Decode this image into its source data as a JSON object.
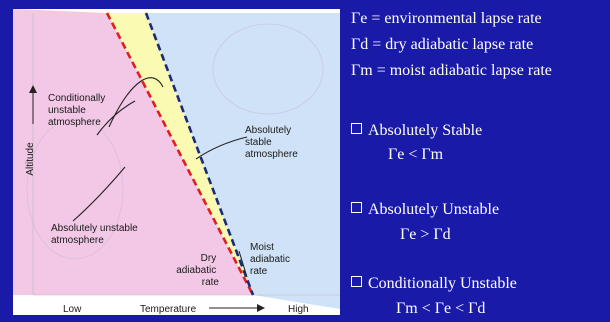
{
  "diagram": {
    "axis": {
      "y_label": "Altitude",
      "x_label": "Temperature",
      "x_low": "Low",
      "x_high": "High"
    },
    "regions": {
      "conditionally_unstable": [
        "Conditionally",
        "unstable",
        "atmosphere"
      ],
      "absolutely_stable": [
        "Absolutely",
        "stable",
        "atmosphere"
      ],
      "absolutely_unstable": [
        "Absolutely unstable",
        "atmosphere"
      ]
    },
    "rates": {
      "dry": [
        "Dry",
        "adiabatic",
        "rate"
      ],
      "moist": [
        "Moist",
        "adiabatic",
        "rate"
      ]
    },
    "colors": {
      "dry_line": "#e11d1d",
      "moist_line": "#1b2b7a",
      "stable_fill": "#cfe2f7",
      "conditional_fill": "#fafab2",
      "unstable_fill": "#f2c8e6"
    }
  },
  "definitions": [
    "Γe = environmental lapse rate",
    "Γd = dry adiabatic lapse rate",
    "Γm = moist adiabatic lapse rate"
  ],
  "stability": [
    {
      "label": "Absolutely Stable",
      "condition": "Γe < Γm"
    },
    {
      "label": "Absolutely Unstable",
      "condition": "Γe > Γd"
    },
    {
      "label": "Conditionally Unstable",
      "condition": "Γm < Γe < Γd"
    }
  ],
  "colors": {
    "background": "#1a1aa8",
    "text": "#ffffff"
  }
}
